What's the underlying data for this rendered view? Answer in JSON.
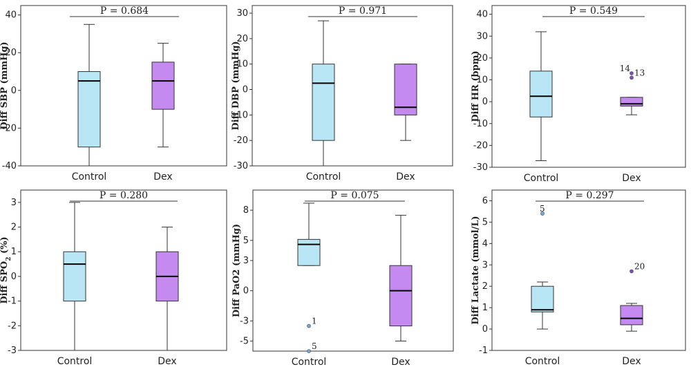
{
  "chart_data": [
    {
      "type": "box",
      "ylabel": "Diff SBP (mmHg)",
      "ylim": [
        -40,
        45
      ],
      "yticks": [
        -40,
        -20,
        0,
        20,
        40
      ],
      "p_label": "P = 0.684",
      "categories": [
        "Control",
        "Dex"
      ],
      "boxes": [
        {
          "min": -40,
          "q1": -30,
          "median": 5,
          "q3": 10,
          "max": 35,
          "outliers": []
        },
        {
          "min": -30,
          "q1": -10,
          "median": 5,
          "q3": 15,
          "max": 25,
          "outliers": []
        }
      ]
    },
    {
      "type": "box",
      "ylabel": "Diff DBP (mmHg)",
      "ylim": [
        -30,
        33
      ],
      "yticks": [
        -30,
        -20,
        -10,
        0,
        10,
        20,
        30
      ],
      "p_label": "P = 0.971",
      "categories": [
        "Control",
        "Dex"
      ],
      "boxes": [
        {
          "min": -30,
          "q1": -20,
          "median": 2.5,
          "q3": 10,
          "max": 27,
          "outliers": []
        },
        {
          "min": -20,
          "q1": -10,
          "median": -7,
          "q3": 10,
          "max": 10,
          "outliers": []
        }
      ]
    },
    {
      "type": "box",
      "ylabel": "Diff HR (bpm)",
      "ylim": [
        -30,
        44
      ],
      "yticks": [
        -30,
        -20,
        -10,
        0,
        10,
        20,
        30,
        40
      ],
      "p_label": "P = 0.549",
      "categories": [
        "Control",
        "Dex"
      ],
      "boxes": [
        {
          "min": -27,
          "q1": -7,
          "median": 2.5,
          "q3": 14,
          "max": 32,
          "outliers": []
        },
        {
          "min": -6,
          "q1": -2,
          "median": -1,
          "q3": 2,
          "max": 2,
          "outliers": [
            {
              "y": 13,
              "label": "14"
            },
            {
              "y": 11,
              "label": "13"
            }
          ]
        }
      ]
    },
    {
      "type": "box",
      "ylabel": "Diff SPO2 (%)",
      "ylim": [
        -3,
        3.5
      ],
      "yticks": [
        -3,
        -2,
        -1,
        0,
        1,
        2,
        3
      ],
      "p_label": "P = 0.280",
      "categories": [
        "Control",
        "Dex"
      ],
      "boxes": [
        {
          "min": -3,
          "q1": -1,
          "median": 0.5,
          "q3": 1,
          "max": 3,
          "outliers": []
        },
        {
          "min": -3,
          "q1": -1,
          "median": 0,
          "q3": 1,
          "max": 2,
          "outliers": []
        }
      ]
    },
    {
      "type": "box",
      "ylabel": "Diff PaO2 (mmHg)",
      "ylim": [
        -6,
        10
      ],
      "yticks": [
        -5,
        -3,
        0,
        3,
        5,
        8
      ],
      "p_label": "P = 0.075",
      "categories": [
        "Control",
        "Dex"
      ],
      "boxes": [
        {
          "min": 2.5,
          "q1": 2.5,
          "median": 4.6,
          "q3": 5.1,
          "max": 8.7,
          "outliers": [
            {
              "y": -3.5,
              "label": "1"
            },
            {
              "y": -6,
              "label": "5"
            }
          ]
        },
        {
          "min": -5,
          "q1": -3.5,
          "median": 0,
          "q3": 2.5,
          "max": 7.5,
          "outliers": []
        }
      ]
    },
    {
      "type": "box",
      "ylabel": "Diff Lactate (mmol/L)",
      "ylim": [
        -1,
        6.5
      ],
      "yticks": [
        -1,
        0,
        1,
        2,
        3,
        4,
        5,
        6
      ],
      "p_label": "P = 0.297",
      "categories": [
        "Control",
        "Dex"
      ],
      "boxes": [
        {
          "min": 0,
          "q1": 0.8,
          "median": 0.9,
          "q3": 2,
          "max": 2.2,
          "outliers": [
            {
              "y": 5.4,
              "label": "5"
            }
          ]
        },
        {
          "min": -0.1,
          "q1": 0.2,
          "median": 0.5,
          "q3": 1.1,
          "max": 1.2,
          "outliers": [
            {
              "y": 2.7,
              "label": "20"
            }
          ]
        }
      ]
    }
  ],
  "colors": {
    "control_fill": "#b8e6f5",
    "dex_fill": "#c48af0",
    "outlier_control": "#6fa8dc",
    "outlier_dex": "#7b52b8",
    "axis": "#333333"
  }
}
